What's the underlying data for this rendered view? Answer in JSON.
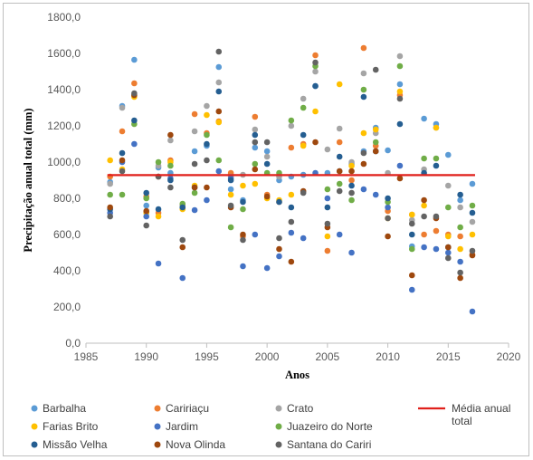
{
  "chart_data": {
    "type": "scatter",
    "title": "",
    "xlabel": "Anos",
    "ylabel": "Precipitação anual total (mm)",
    "xlim": [
      1985,
      2020
    ],
    "ylim": [
      0,
      1800
    ],
    "x_ticks": [
      1985,
      1990,
      1995,
      2000,
      2005,
      2010,
      2015,
      2020
    ],
    "y_ticks": [
      "0,0",
      "200,0",
      "400,0",
      "600,0",
      "800,0",
      "1000,0",
      "1200,0",
      "1400,0",
      "1600,0",
      "1800,0"
    ],
    "grid": false,
    "legend_position": "bottom",
    "mean_line": {
      "name": "Média anual total",
      "name_line1": "Média anual",
      "name_line2": "total",
      "value": 928,
      "color": "#e0201b"
    },
    "series": [
      {
        "name": "Barbalha",
        "color": "#5b9bd5",
        "points": [
          [
            1987,
            890
          ],
          [
            1988,
            1310
          ],
          [
            1989,
            1565
          ],
          [
            1990,
            760
          ],
          [
            1991,
            970
          ],
          [
            1992,
            940
          ],
          [
            1993,
            750
          ],
          [
            1994,
            1060
          ],
          [
            1995,
            1090
          ],
          [
            1996,
            1525
          ],
          [
            1997,
            850
          ],
          [
            1998,
            790
          ],
          [
            1999,
            1080
          ],
          [
            2000,
            1060
          ],
          [
            2001,
            900
          ],
          [
            2002,
            920
          ],
          [
            2003,
            930
          ],
          [
            2004,
            1420
          ],
          [
            2005,
            940
          ],
          [
            2006,
            950
          ],
          [
            2007,
            990
          ],
          [
            2008,
            1060
          ],
          [
            2009,
            1190
          ],
          [
            2010,
            1065
          ],
          [
            2011,
            1430
          ],
          [
            2012,
            535
          ],
          [
            2013,
            1240
          ],
          [
            2014,
            1210
          ],
          [
            2015,
            1040
          ],
          [
            2016,
            790
          ],
          [
            2017,
            880
          ]
        ]
      },
      {
        "name": "Caririaçu",
        "color": "#ed7d31",
        "points": [
          [
            1987,
            920
          ],
          [
            1988,
            1170
          ],
          [
            1989,
            1435
          ],
          [
            1990,
            810
          ],
          [
            1991,
            720
          ],
          [
            1992,
            1010
          ],
          [
            1993,
            760
          ],
          [
            1994,
            1265
          ],
          [
            1995,
            1160
          ],
          [
            1996,
            1225
          ],
          [
            1997,
            940
          ],
          [
            1998,
            590
          ],
          [
            1999,
            1250
          ],
          [
            2000,
            820
          ],
          [
            2001,
            780
          ],
          [
            2002,
            1080
          ],
          [
            2003,
            1100
          ],
          [
            2004,
            1590
          ],
          [
            2005,
            510
          ],
          [
            2006,
            1110
          ],
          [
            2007,
            900
          ],
          [
            2008,
            1630
          ],
          [
            2009,
            1090
          ],
          [
            2010,
            730
          ],
          [
            2011,
            1370
          ],
          [
            2012,
            710
          ],
          [
            2013,
            600
          ],
          [
            2014,
            620
          ],
          [
            2015,
            600
          ],
          [
            2016,
            590
          ],
          [
            2017,
            490
          ]
        ]
      },
      {
        "name": "Crato",
        "color": "#a5a5a5",
        "points": [
          [
            1987,
            880
          ],
          [
            1988,
            1300
          ],
          [
            1989,
            1370
          ],
          [
            1990,
            720
          ],
          [
            1991,
            980
          ],
          [
            1992,
            1120
          ],
          [
            1993,
            760
          ],
          [
            1994,
            1170
          ],
          [
            1995,
            1310
          ],
          [
            1996,
            1440
          ],
          [
            1997,
            920
          ],
          [
            1998,
            930
          ],
          [
            1999,
            1180
          ],
          [
            2000,
            1030
          ],
          [
            2001,
            920
          ],
          [
            2002,
            1200
          ],
          [
            2003,
            1350
          ],
          [
            2004,
            1500
          ],
          [
            2005,
            1070
          ],
          [
            2006,
            1185
          ],
          [
            2007,
            1000
          ],
          [
            2008,
            1490
          ],
          [
            2009,
            1160
          ],
          [
            2010,
            940
          ],
          [
            2011,
            1585
          ],
          [
            2012,
            680
          ],
          [
            2013,
            960
          ],
          [
            2014,
            1190
          ],
          [
            2015,
            870
          ],
          [
            2016,
            750
          ],
          [
            2017,
            670
          ]
        ]
      },
      {
        "name": "Farias Brito",
        "color": "#ffc000",
        "points": [
          [
            1987,
            1010
          ],
          [
            1988,
            960
          ],
          [
            1989,
            1360
          ],
          [
            1990,
            720
          ],
          [
            1991,
            700
          ],
          [
            1992,
            1000
          ],
          [
            1993,
            740
          ],
          [
            1994,
            870
          ],
          [
            1995,
            1260
          ],
          [
            1996,
            1220
          ],
          [
            1997,
            820
          ],
          [
            1998,
            870
          ],
          [
            1999,
            880
          ],
          [
            2000,
            800
          ],
          [
            2001,
            790
          ],
          [
            2002,
            820
          ],
          [
            2003,
            1090
          ],
          [
            2004,
            1280
          ],
          [
            2005,
            590
          ],
          [
            2006,
            1430
          ],
          [
            2007,
            980
          ],
          [
            2008,
            1160
          ],
          [
            2009,
            1180
          ],
          [
            2010,
            690
          ],
          [
            2011,
            1390
          ],
          [
            2012,
            710
          ],
          [
            2013,
            760
          ],
          [
            2014,
            1190
          ],
          [
            2015,
            590
          ],
          [
            2016,
            520
          ],
          [
            2017,
            600
          ]
        ]
      },
      {
        "name": "Jardim",
        "color": "#4472c4",
        "points": [
          [
            1987,
            720
          ],
          [
            1988,
            1000
          ],
          [
            1989,
            1100
          ],
          [
            1990,
            700
          ],
          [
            1991,
            440
          ],
          [
            1992,
            910
          ],
          [
            1993,
            360
          ],
          [
            1994,
            735
          ],
          [
            1995,
            790
          ],
          [
            1996,
            950
          ],
          [
            1997,
            910
          ],
          [
            1998,
            425
          ],
          [
            1999,
            600
          ],
          [
            2000,
            415
          ],
          [
            2001,
            480
          ],
          [
            2002,
            610
          ],
          [
            2003,
            580
          ],
          [
            2004,
            940
          ],
          [
            2005,
            800
          ],
          [
            2006,
            600
          ],
          [
            2007,
            500
          ],
          [
            2008,
            850
          ],
          [
            2009,
            820
          ],
          [
            2010,
            750
          ],
          [
            2011,
            980
          ],
          [
            2012,
            295
          ],
          [
            2013,
            530
          ],
          [
            2014,
            520
          ],
          [
            2015,
            500
          ],
          [
            2016,
            450
          ],
          [
            2017,
            175
          ]
        ]
      },
      {
        "name": "Juazeiro do Norte",
        "color": "#70ad47",
        "points": [
          [
            1987,
            820
          ],
          [
            1988,
            820
          ],
          [
            1989,
            1210
          ],
          [
            1990,
            800
          ],
          [
            1991,
            1000
          ],
          [
            1992,
            980
          ],
          [
            1993,
            770
          ],
          [
            1994,
            830
          ],
          [
            1995,
            1150
          ],
          [
            1996,
            1010
          ],
          [
            1997,
            640
          ],
          [
            1998,
            740
          ],
          [
            1999,
            990
          ],
          [
            2000,
            940
          ],
          [
            2001,
            940
          ],
          [
            2002,
            1230
          ],
          [
            2003,
            1300
          ],
          [
            2004,
            1530
          ],
          [
            2005,
            850
          ],
          [
            2006,
            880
          ],
          [
            2007,
            790
          ],
          [
            2008,
            1400
          ],
          [
            2009,
            1110
          ],
          [
            2010,
            780
          ],
          [
            2011,
            1530
          ],
          [
            2012,
            520
          ],
          [
            2013,
            1020
          ],
          [
            2014,
            1020
          ],
          [
            2015,
            750
          ],
          [
            2016,
            640
          ],
          [
            2017,
            760
          ]
        ]
      },
      {
        "name": "Missão Velha",
        "color": "#255e91",
        "points": [
          [
            1987,
            740
          ],
          [
            1988,
            1050
          ],
          [
            1989,
            1230
          ],
          [
            1990,
            830
          ],
          [
            1991,
            740
          ],
          [
            1992,
            900
          ],
          [
            1993,
            750
          ],
          [
            1994,
            860
          ],
          [
            1995,
            1100
          ],
          [
            1996,
            1390
          ],
          [
            1997,
            900
          ],
          [
            1998,
            780
          ],
          [
            1999,
            1150
          ],
          [
            2000,
            990
          ],
          [
            2001,
            780
          ],
          [
            2002,
            750
          ],
          [
            2003,
            1150
          ],
          [
            2004,
            1420
          ],
          [
            2005,
            750
          ],
          [
            2006,
            1030
          ],
          [
            2007,
            870
          ],
          [
            2008,
            1360
          ],
          [
            2009,
            1060
          ],
          [
            2010,
            800
          ],
          [
            2011,
            1210
          ],
          [
            2012,
            600
          ],
          [
            2013,
            940
          ],
          [
            2014,
            980
          ],
          [
            2015,
            530
          ],
          [
            2016,
            820
          ],
          [
            2017,
            720
          ]
        ]
      },
      {
        "name": "Nova Olinda",
        "color": "#9e480e",
        "points": [
          [
            1987,
            750
          ],
          [
            1988,
            1010
          ],
          [
            1989,
            1370
          ],
          [
            1990,
            730
          ],
          [
            1991,
            920
          ],
          [
            1992,
            1150
          ],
          [
            1993,
            530
          ],
          [
            1994,
            860
          ],
          [
            1995,
            860
          ],
          [
            1996,
            1280
          ],
          [
            1997,
            750
          ],
          [
            1998,
            600
          ],
          [
            1999,
            960
          ],
          [
            2000,
            810
          ],
          [
            2001,
            520
          ],
          [
            2002,
            450
          ],
          [
            2003,
            840
          ],
          [
            2004,
            1110
          ],
          [
            2005,
            640
          ],
          [
            2006,
            950
          ],
          [
            2007,
            950
          ],
          [
            2008,
            990
          ],
          [
            2009,
            1060
          ],
          [
            2010,
            590
          ],
          [
            2011,
            910
          ],
          [
            2012,
            375
          ],
          [
            2013,
            790
          ],
          [
            2014,
            690
          ],
          [
            2015,
            530
          ],
          [
            2016,
            360
          ],
          [
            2017,
            485
          ]
        ]
      },
      {
        "name": "Santana do Cariri",
        "color": "#636363",
        "points": [
          [
            1987,
            700
          ],
          [
            1988,
            950
          ],
          [
            1989,
            1380
          ],
          [
            1990,
            650
          ],
          [
            1991,
            920
          ],
          [
            1992,
            860
          ],
          [
            1993,
            570
          ],
          [
            1994,
            990
          ],
          [
            1995,
            1010
          ],
          [
            1996,
            1610
          ],
          [
            1997,
            760
          ],
          [
            1998,
            570
          ],
          [
            1999,
            1110
          ],
          [
            2000,
            1110
          ],
          [
            2001,
            580
          ],
          [
            2002,
            670
          ],
          [
            2003,
            830
          ],
          [
            2004,
            1550
          ],
          [
            2005,
            660
          ],
          [
            2006,
            840
          ],
          [
            2007,
            830
          ],
          [
            2008,
            1050
          ],
          [
            2009,
            1510
          ],
          [
            2010,
            690
          ],
          [
            2011,
            1350
          ],
          [
            2012,
            660
          ],
          [
            2013,
            700
          ],
          [
            2014,
            700
          ],
          [
            2015,
            470
          ],
          [
            2016,
            390
          ],
          [
            2017,
            510
          ]
        ]
      }
    ]
  }
}
